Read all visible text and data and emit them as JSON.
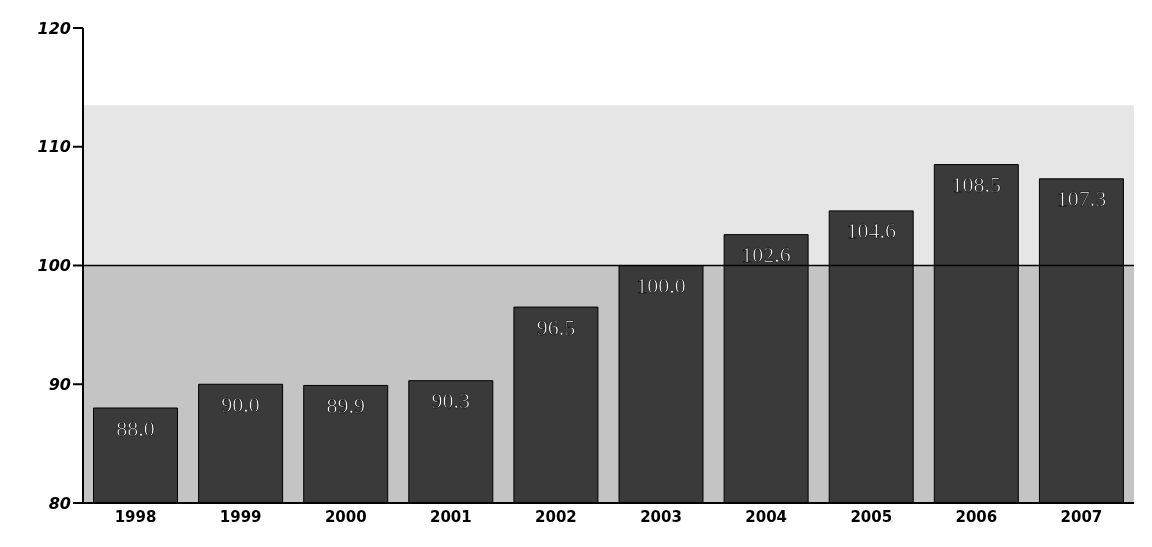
{
  "chart_data": {
    "type": "bar",
    "categories": [
      "1998",
      "1999",
      "2000",
      "2001",
      "2002",
      "2003",
      "2004",
      "2005",
      "2006",
      "2007"
    ],
    "values": [
      88.0,
      90.0,
      89.9,
      90.3,
      96.5,
      100.0,
      102.6,
      104.6,
      108.5,
      107.3
    ],
    "color": "#3a3a3a",
    "ylim": [
      80,
      120
    ],
    "yticks": [
      80,
      90,
      100,
      110,
      120
    ],
    "value_labels": [
      "88.0",
      "90.0",
      "89.9",
      "90.3",
      "96.5",
      "100.0",
      "102.6",
      "104.6",
      "108.5",
      "107.3"
    ],
    "grid": false,
    "ref_lines": [
      {
        "axis": "y",
        "value": 100,
        "color": "#000000"
      }
    ],
    "bands": [
      {
        "axis": "y",
        "from": 80,
        "to": 100,
        "color": "#c4c4c4"
      },
      {
        "axis": "y",
        "from": 100,
        "to": 113.5,
        "color": "#e6e6e6"
      }
    ]
  }
}
